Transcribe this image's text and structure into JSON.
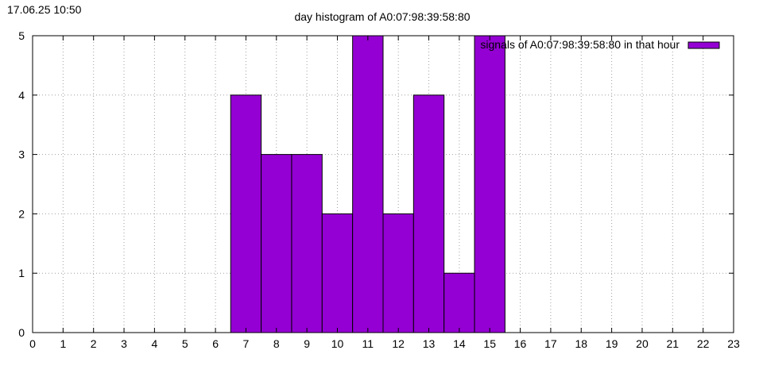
{
  "timestamp": "17.06.25 10:50",
  "chart_data": {
    "type": "bar",
    "title": "day histogram of A0:07:98:39:58:80",
    "xlabel": "",
    "ylabel": "",
    "xlim": [
      0,
      23
    ],
    "ylim": [
      0,
      5
    ],
    "x_ticks": [
      0,
      1,
      2,
      3,
      4,
      5,
      6,
      7,
      8,
      9,
      10,
      11,
      12,
      13,
      14,
      15,
      16,
      17,
      18,
      19,
      20,
      21,
      22,
      23
    ],
    "y_ticks": [
      0,
      1,
      2,
      3,
      4,
      5
    ],
    "grid": true,
    "legend_position": "top-right",
    "series": [
      {
        "name": "signals of A0:07:98:39:58:80 in that hour",
        "color": "#9400d3",
        "x": [
          7,
          8,
          9,
          10,
          11,
          12,
          13,
          14,
          15
        ],
        "values": [
          4,
          3,
          3,
          2,
          5,
          2,
          4,
          1,
          5
        ]
      }
    ]
  }
}
